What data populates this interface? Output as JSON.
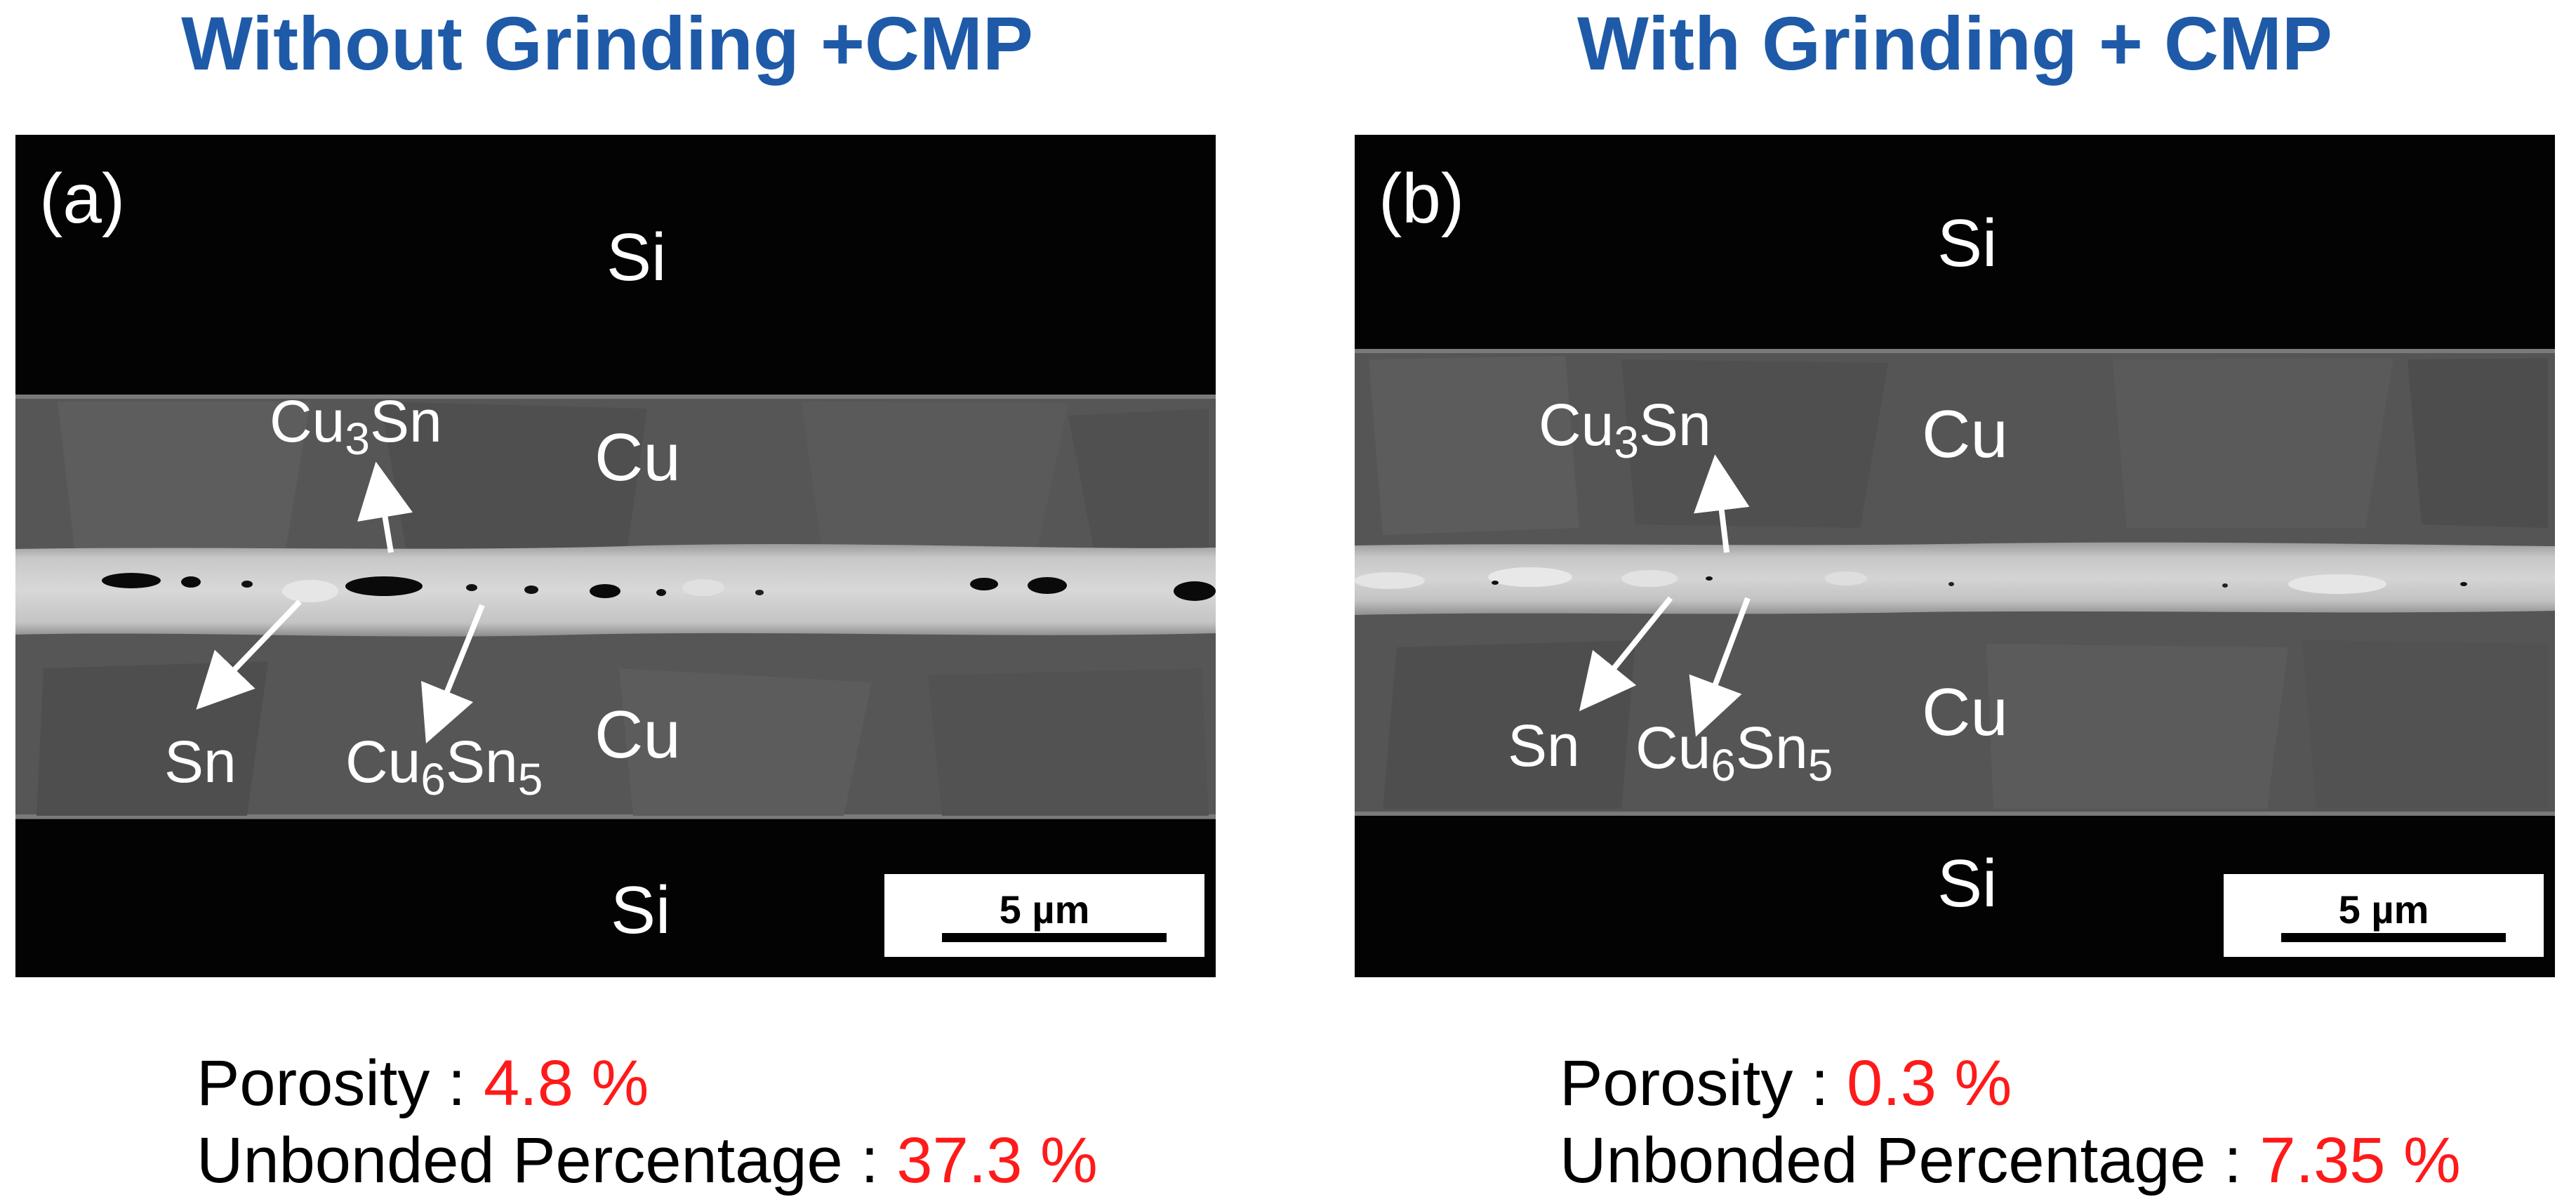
{
  "panels": [
    {
      "title": "Without Grinding +CMP",
      "letter": "(a)",
      "labels": {
        "si_top": "Si",
        "cu_top": "Cu",
        "cu_bottom": "Cu",
        "si_bottom": "Si",
        "cu3sn_main": "Cu",
        "cu3sn_sub": "3",
        "cu3sn_tail": "Sn",
        "sn": "Sn",
        "cu6sn5_main": "Cu",
        "cu6sn5_sub1": "6",
        "cu6sn5_mid": "Sn",
        "cu6sn5_sub2": "5"
      },
      "scalebar": "5 µm",
      "porosity_label": "Porosity : ",
      "porosity_value": "4.8 %",
      "unbonded_label": "Unbonded Percentage : ",
      "unbonded_value": "37.3 %"
    },
    {
      "title": "With Grinding + CMP",
      "letter": "(b)",
      "labels": {
        "si_top": "Si",
        "cu_top": "Cu",
        "cu_bottom": "Cu",
        "si_bottom": "Si",
        "cu3sn_main": "Cu",
        "cu3sn_sub": "3",
        "cu3sn_tail": "Sn",
        "sn": "Sn",
        "cu6sn5_main": "Cu",
        "cu6sn5_sub1": "6",
        "cu6sn5_mid": "Sn",
        "cu6sn5_sub2": "5"
      },
      "scalebar": "5 µm",
      "porosity_label": "Porosity : ",
      "porosity_value": "0.3 %",
      "unbonded_label": "Unbonded Percentage : ",
      "unbonded_value": "7.35 %"
    }
  ],
  "colors": {
    "title": "#1e5aa8",
    "value": "#ff1a1a",
    "silicon": "#030303",
    "copper": "#545454",
    "bond_layer": "#bdbdbd"
  }
}
